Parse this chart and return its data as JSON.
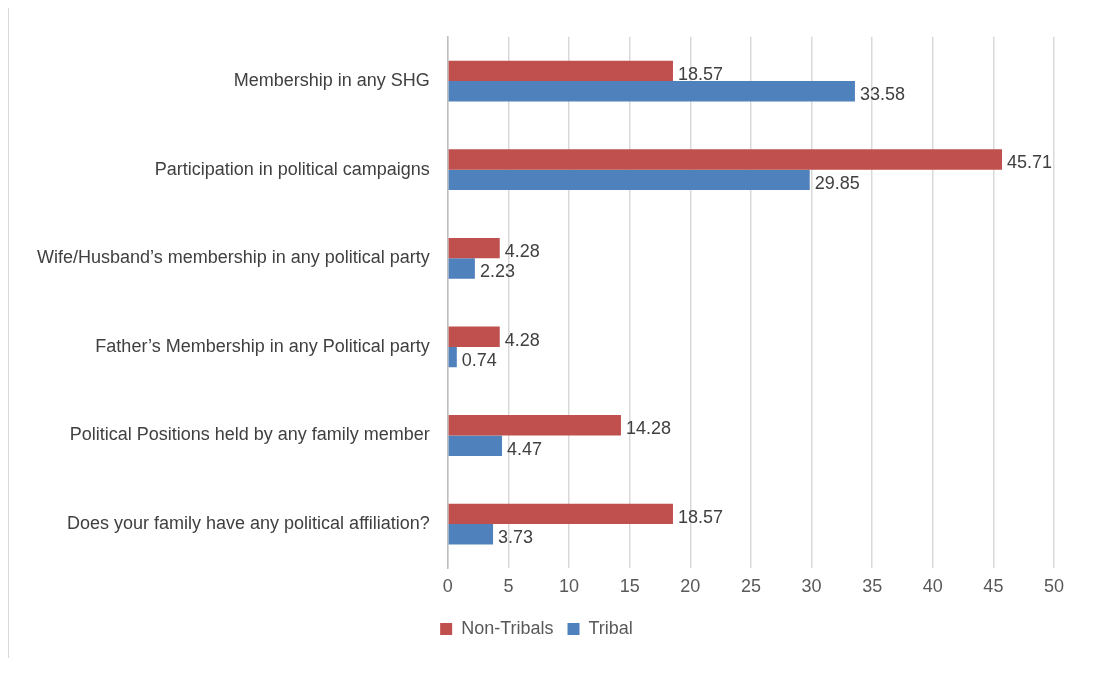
{
  "chart_data": {
    "type": "bar",
    "orientation": "horizontal",
    "categories": [
      "Membership in any SHG",
      "Participation in political campaigns",
      "Wife/Husband’s membership in any political party",
      "Father’s Membership in any Political party",
      "Political Positions held by any family member",
      "Does your family have any political affiliation?"
    ],
    "series": [
      {
        "name": "Non-Tribals",
        "color": "#c0504d",
        "values": [
          18.57,
          45.71,
          4.28,
          4.28,
          14.28,
          18.57
        ]
      },
      {
        "name": "Tribal",
        "color": "#4f81bd",
        "values": [
          33.58,
          29.85,
          2.23,
          0.74,
          4.47,
          3.73
        ]
      }
    ],
    "xlim": [
      0,
      50
    ],
    "xticks": [
      0,
      5,
      10,
      15,
      20,
      25,
      30,
      35,
      40,
      45,
      50
    ],
    "grid": "x",
    "legend": "bottom",
    "data_labels": true
  }
}
